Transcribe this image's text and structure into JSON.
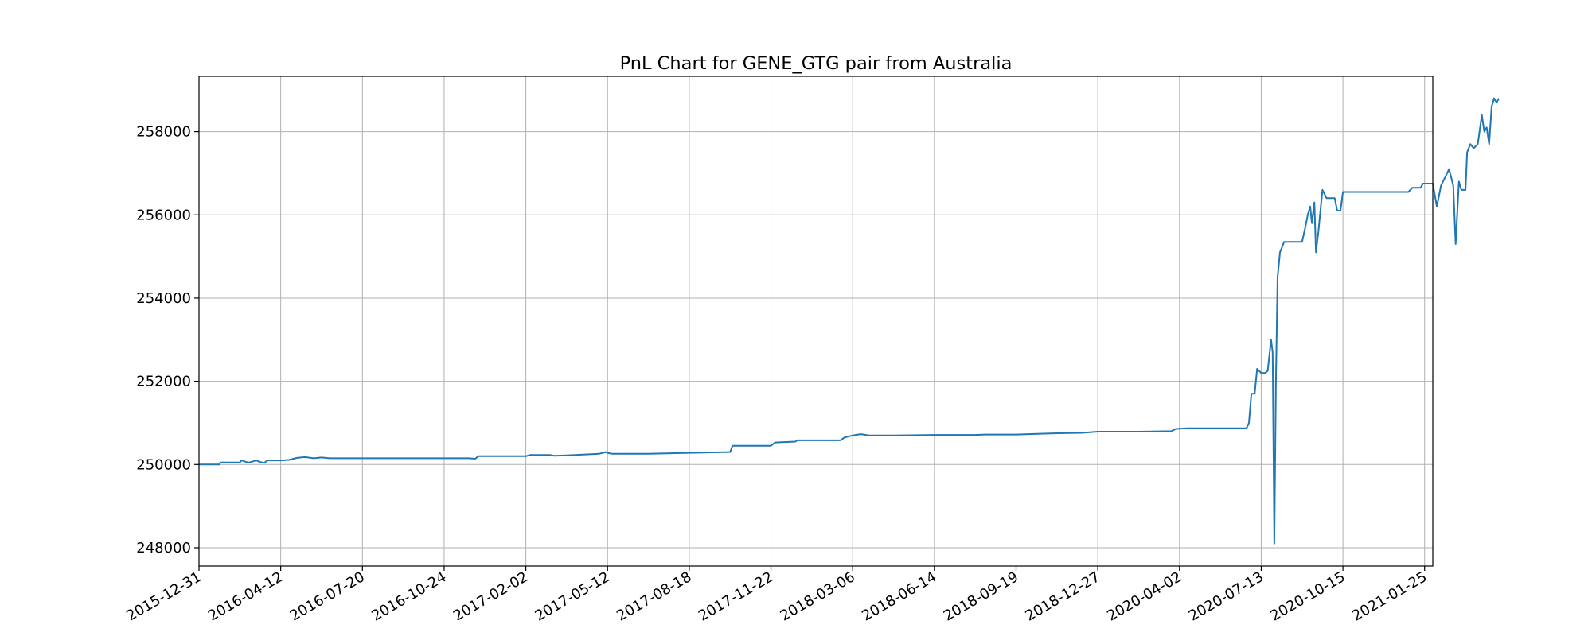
{
  "chart_data": {
    "type": "line",
    "title": "PnL Chart for GENE_GTG pair from Australia",
    "xlabel": "",
    "ylabel": "",
    "grid": true,
    "x_tick_labels": [
      "2015-12-31",
      "2016-04-12",
      "2016-07-20",
      "2016-10-24",
      "2017-02-02",
      "2017-05-12",
      "2017-08-18",
      "2017-11-22",
      "2018-03-06",
      "2018-06-14",
      "2018-09-19",
      "2018-12-27",
      "2020-04-02",
      "2020-07-13",
      "2020-10-15",
      "2021-01-25"
    ],
    "y_ticks": [
      248000,
      250000,
      252000,
      254000,
      256000,
      258000
    ],
    "ylim": [
      247560,
      259330
    ],
    "x_index_range": [
      0,
      15.1
    ],
    "series": [
      {
        "color": "#1f77b4",
        "points": [
          [
            0.0,
            250000
          ],
          [
            0.25,
            250000
          ],
          [
            0.26,
            250050
          ],
          [
            0.5,
            250050
          ],
          [
            0.52,
            250100
          ],
          [
            0.58,
            250060
          ],
          [
            0.62,
            250050
          ],
          [
            0.7,
            250100
          ],
          [
            0.75,
            250060
          ],
          [
            0.8,
            250040
          ],
          [
            0.84,
            250100
          ],
          [
            1.0,
            250100
          ],
          [
            1.1,
            250110
          ],
          [
            1.2,
            250160
          ],
          [
            1.3,
            250180
          ],
          [
            1.4,
            250150
          ],
          [
            1.5,
            250170
          ],
          [
            1.6,
            250150
          ],
          [
            2.0,
            250150
          ],
          [
            2.5,
            250150
          ],
          [
            3.0,
            250150
          ],
          [
            3.3,
            250150
          ],
          [
            3.38,
            250140
          ],
          [
            3.42,
            250200
          ],
          [
            4.0,
            250200
          ],
          [
            4.05,
            250230
          ],
          [
            4.3,
            250230
          ],
          [
            4.35,
            250210
          ],
          [
            4.5,
            250220
          ],
          [
            4.7,
            250240
          ],
          [
            4.9,
            250260
          ],
          [
            4.98,
            250300
          ],
          [
            5.0,
            250280
          ],
          [
            5.05,
            250260
          ],
          [
            5.5,
            250260
          ],
          [
            6.0,
            250280
          ],
          [
            6.5,
            250300
          ],
          [
            6.53,
            250450
          ],
          [
            7.0,
            250450
          ],
          [
            7.05,
            250530
          ],
          [
            7.3,
            250550
          ],
          [
            7.32,
            250580
          ],
          [
            7.5,
            250580
          ],
          [
            7.85,
            250580
          ],
          [
            7.9,
            250650
          ],
          [
            8.0,
            250700
          ],
          [
            8.1,
            250730
          ],
          [
            8.2,
            250700
          ],
          [
            8.5,
            250700
          ],
          [
            9.0,
            250710
          ],
          [
            9.5,
            250710
          ],
          [
            9.62,
            250720
          ],
          [
            10.0,
            250720
          ],
          [
            10.3,
            250740
          ],
          [
            10.5,
            250750
          ],
          [
            10.8,
            250760
          ],
          [
            11.0,
            250790
          ],
          [
            11.5,
            250790
          ],
          [
            11.9,
            250800
          ],
          [
            11.95,
            250850
          ],
          [
            12.0,
            250860
          ],
          [
            12.1,
            250870
          ],
          [
            12.5,
            250870
          ],
          [
            12.82,
            250870
          ],
          [
            12.85,
            251000
          ],
          [
            12.88,
            251700
          ],
          [
            12.92,
            251700
          ],
          [
            12.95,
            252300
          ],
          [
            13.0,
            252200
          ],
          [
            13.05,
            252200
          ],
          [
            13.08,
            252250
          ],
          [
            13.12,
            253000
          ],
          [
            13.14,
            252700
          ],
          [
            13.16,
            248100
          ],
          [
            13.18,
            252000
          ],
          [
            13.2,
            254500
          ],
          [
            13.23,
            255100
          ],
          [
            13.28,
            255350
          ],
          [
            13.5,
            255350
          ],
          [
            13.55,
            255800
          ],
          [
            13.57,
            256000
          ],
          [
            13.6,
            256200
          ],
          [
            13.62,
            255800
          ],
          [
            13.65,
            256300
          ],
          [
            13.67,
            255100
          ],
          [
            13.7,
            255600
          ],
          [
            13.72,
            256000
          ],
          [
            13.75,
            256600
          ],
          [
            13.8,
            256400
          ],
          [
            13.9,
            256400
          ],
          [
            13.93,
            256100
          ],
          [
            13.97,
            256100
          ],
          [
            14.0,
            256550
          ],
          [
            14.5,
            256550
          ],
          [
            14.8,
            256550
          ],
          [
            14.85,
            256650
          ],
          [
            14.95,
            256650
          ],
          [
            14.98,
            256750
          ],
          [
            15.1,
            256750
          ],
          [
            15.15,
            256200
          ],
          [
            15.2,
            256700
          ],
          [
            15.25,
            256900
          ],
          [
            15.3,
            257100
          ],
          [
            15.35,
            256700
          ],
          [
            15.38,
            255300
          ],
          [
            15.42,
            256800
          ],
          [
            15.45,
            256600
          ],
          [
            15.5,
            256600
          ],
          [
            15.52,
            257500
          ],
          [
            15.56,
            257700
          ],
          [
            15.6,
            257600
          ],
          [
            15.65,
            257700
          ],
          [
            15.7,
            258400
          ],
          [
            15.73,
            258000
          ],
          [
            15.76,
            258100
          ],
          [
            15.79,
            257700
          ],
          [
            15.82,
            258600
          ],
          [
            15.85,
            258800
          ],
          [
            15.88,
            258700
          ],
          [
            15.91,
            258800
          ]
        ]
      }
    ]
  }
}
